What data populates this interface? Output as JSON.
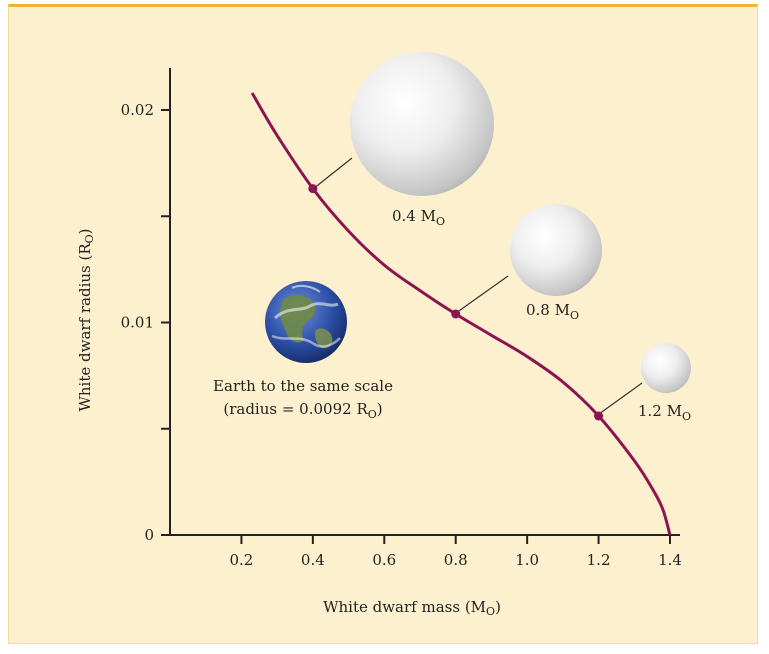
{
  "chart_data": {
    "type": "line",
    "xlabel": "White dwarf mass (M",
    "ylabel": "White dwarf radius (R",
    "xlim": [
      0,
      1.4
    ],
    "ylim": [
      0,
      0.02
    ],
    "x_ticks": [
      "0.2",
      "0.4",
      "0.6",
      "0.8",
      "1.0",
      "1.2",
      "1.4"
    ],
    "y_ticks": [
      "0",
      "0.01",
      "0.02"
    ],
    "y_tick_values": [
      0,
      0.005,
      0.01,
      0.015,
      0.02
    ],
    "series": [
      {
        "x": [
          0.23,
          0.3,
          0.4,
          0.5,
          0.6,
          0.7,
          0.8,
          0.9,
          1.0,
          1.1,
          1.2,
          1.3,
          1.35,
          1.38,
          1.4
        ],
        "y": [
          0.0208,
          0.0188,
          0.0163,
          0.0143,
          0.0127,
          0.0115,
          0.0104,
          0.0094,
          0.0084,
          0.0072,
          0.0056,
          0.0035,
          0.0022,
          0.0012,
          0.0
        ]
      }
    ],
    "highlighted_points": [
      {
        "x": 0.4,
        "y": 0.0163,
        "label": "0.4 M"
      },
      {
        "x": 0.8,
        "y": 0.0104,
        "label": "0.8 M"
      },
      {
        "x": 1.2,
        "y": 0.0056,
        "label": "1.2 M"
      }
    ],
    "annotations": {
      "earth_line1": "Earth to the same scale",
      "earth_line2_prefix": "(radius = 0.0092 R",
      "earth_line2_suffix": ")"
    },
    "sun_symbol": "O",
    "label_close": ")",
    "colors": {
      "background": "#fdf0cf",
      "border": "#f2b233",
      "curve": "#8c1450",
      "axis": "#222222"
    },
    "icons": [
      "earth-globe-icon",
      "white-dwarf-sphere-icon"
    ]
  }
}
